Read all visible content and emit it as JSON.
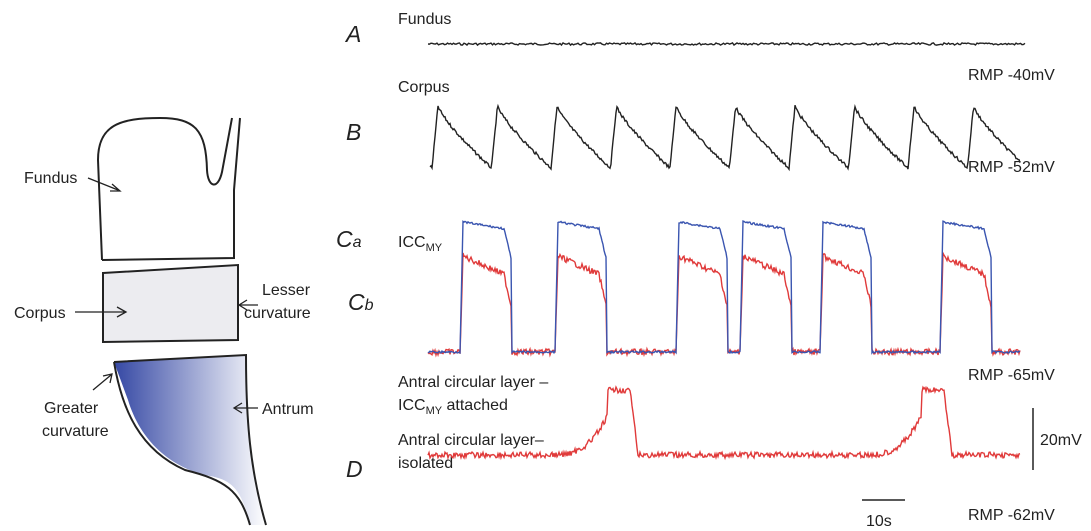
{
  "diagram": {
    "fundus": "Fundus",
    "corpus": "Corpus",
    "lesser_curvature": [
      "Lesser",
      "curvature"
    ],
    "greater_curvature": [
      "Greater",
      "curvature"
    ],
    "antrum": "Antrum"
  },
  "traces": {
    "panel_a": {
      "label": "A",
      "name": "Fundus",
      "rmp": "RMP -40mV"
    },
    "panel_b": {
      "label": "B",
      "name": "Corpus",
      "rmp": "RMP -52mV"
    },
    "panel_ca": {
      "label": "C",
      "sub": "a",
      "name": "ICC",
      "name_sub": "MY"
    },
    "panel_cb": {
      "label": "C",
      "sub": "b",
      "rmp": "RMP -65mV"
    },
    "panel_d": {
      "label": "D",
      "line1": "Antral circular layer –",
      "line2": "ICC",
      "line2_sub": "MY",
      "line2_rest": " attached",
      "line3": "Antral circular layer–",
      "line4": "isolated",
      "rmp": "RMP -62mV"
    },
    "scale_v": "20mV",
    "scale_t": "10s"
  }
}
